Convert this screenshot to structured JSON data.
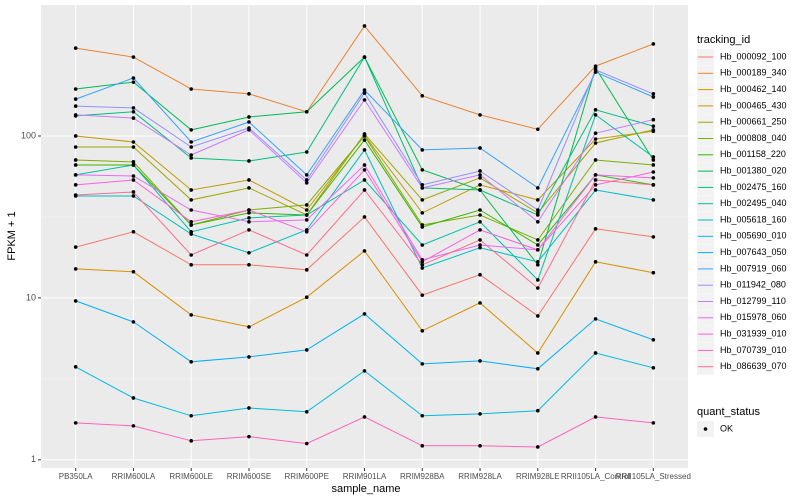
{
  "chart_data": {
    "type": "line",
    "log_y": true,
    "grid": true,
    "x_label": "sample_name",
    "y_label": "FPKM + 1",
    "legend_title": "tracking_id",
    "point_legend_title": "quant_status",
    "point_legend_label": "OK",
    "point_color": "#000000",
    "categories": [
      "PB350LA",
      "RRIM600LA",
      "RRIM600LE",
      "RRIM600SE",
      "RRIM600PE",
      "RRIM901LA",
      "RRIM928BA",
      "RRIM928LA",
      "RRIM928LE",
      "RRII105LA_Control",
      "RRII105LA_Stressed"
    ],
    "ylim": [
      0.89,
      644
    ],
    "yticks": [
      1,
      10,
      100
    ],
    "series": [
      {
        "name": "Hb_000092_100",
        "color": "#F8766D",
        "values": [
          20.6,
          25.6,
          16.0,
          16.0,
          14.9,
          31.6,
          10.4,
          13.9,
          7.74,
          26.7,
          23.8
        ]
      },
      {
        "name": "Hb_000189_340",
        "color": "#EA8331",
        "values": [
          349,
          307,
          195,
          182,
          141,
          478,
          177,
          135,
          110,
          270,
          370
        ]
      },
      {
        "name": "Hb_000462_140",
        "color": "#D89000",
        "values": [
          15.1,
          14.5,
          7.85,
          6.62,
          10.1,
          19.5,
          6.26,
          9.31,
          4.57,
          16.7,
          14.3
        ]
      },
      {
        "name": "Hb_000465_430",
        "color": "#C09B00",
        "values": [
          100,
          91.8,
          46.4,
          53.5,
          34.9,
          101,
          33.5,
          49.9,
          40.3,
          95.8,
          107
        ]
      },
      {
        "name": "Hb_000661_250",
        "color": "#A3A500",
        "values": [
          85.5,
          85.5,
          40.3,
          47.8,
          32.5,
          103,
          40.3,
          55.1,
          33.5,
          90.5,
          109
        ]
      },
      {
        "name": "Hb_000808_040",
        "color": "#7CAE00",
        "values": [
          71.1,
          69.2,
          28.2,
          34.9,
          37.5,
          100,
          28.2,
          32.5,
          22.8,
          71.1,
          66.2
        ]
      },
      {
        "name": "Hb_001158_220",
        "color": "#39B600",
        "values": [
          66.2,
          66.2,
          28.2,
          33.5,
          32.5,
          94.4,
          27.4,
          34.9,
          21.2,
          57.5,
          49.9
        ]
      },
      {
        "name": "Hb_001380_020",
        "color": "#00BB4E",
        "values": [
          195,
          215,
          109,
          131,
          141,
          307,
          61.7,
          46.4,
          16.0,
          263,
          71.1
        ]
      },
      {
        "name": "Hb_002475_160",
        "color": "#00BF7D",
        "values": [
          133,
          141,
          73.1,
          70.1,
          79.6,
          307,
          47.8,
          46.4,
          32.5,
          145,
          115
        ]
      },
      {
        "name": "Hb_002495_040",
        "color": "#00C1A3",
        "values": [
          57.5,
          66.2,
          25.6,
          31.2,
          32.5,
          53.5,
          21.2,
          29.5,
          12.9,
          135,
          74.2
        ]
      },
      {
        "name": "Hb_005618_160",
        "color": "#00BFC4",
        "values": [
          42.6,
          42.6,
          24.8,
          19.0,
          26.3,
          82.0,
          15.3,
          20.4,
          16.7,
          46.4,
          40.3
        ]
      },
      {
        "name": "Hb_005690_010",
        "color": "#00BAE0",
        "values": [
          3.75,
          2.41,
          1.87,
          2.09,
          1.98,
          3.54,
          1.87,
          1.92,
          2.01,
          4.57,
          3.7
        ]
      },
      {
        "name": "Hb_007643_050",
        "color": "#00B0F6",
        "values": [
          9.58,
          7.11,
          4.03,
          4.32,
          4.77,
          7.96,
          3.91,
          4.08,
          3.65,
          7.42,
          5.51
        ]
      },
      {
        "name": "Hb_007919_060",
        "color": "#35A2FF",
        "values": [
          169,
          228,
          91.8,
          122,
          57.5,
          192,
          82.0,
          84.3,
          47.8,
          248,
          174
        ]
      },
      {
        "name": "Hb_011942_080",
        "color": "#9590FF",
        "values": [
          153,
          149,
          85.5,
          112,
          53.5,
          184,
          49.9,
          60.8,
          34.9,
          256,
          182
        ]
      },
      {
        "name": "Hb_012799_110",
        "color": "#C77CFF",
        "values": [
          135,
          129,
          76.3,
          109,
          51.3,
          167,
          47.8,
          57.5,
          29.5,
          104,
          126
        ]
      },
      {
        "name": "Hb_015978_060",
        "color": "#E76BF3",
        "values": [
          57.5,
          56.6,
          34.9,
          29.5,
          30.3,
          66.2,
          17.2,
          21.2,
          19.8,
          57.5,
          55.1
        ]
      },
      {
        "name": "Hb_031939_010",
        "color": "#FA62DB",
        "values": [
          49.9,
          53.5,
          29.5,
          34.9,
          25.6,
          61.7,
          16.7,
          26.3,
          19.8,
          49.9,
          59.9
        ]
      },
      {
        "name": "Hb_070739_010",
        "color": "#FF62BC",
        "values": [
          1.69,
          1.62,
          1.31,
          1.39,
          1.26,
          1.84,
          1.22,
          1.22,
          1.2,
          1.84,
          1.69
        ]
      },
      {
        "name": "Hb_086639_070",
        "color": "#FF6C90",
        "values": [
          43.2,
          45.1,
          18.4,
          26.3,
          18.4,
          46.4,
          16.0,
          22.8,
          11.5,
          53.5,
          49.9
        ]
      }
    ]
  }
}
